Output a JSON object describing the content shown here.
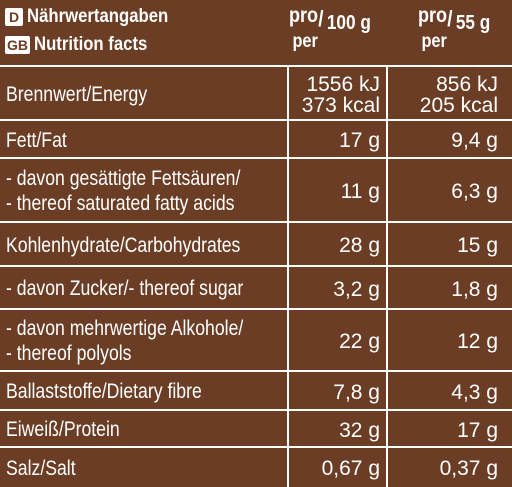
{
  "header": {
    "de_code": "D",
    "de_title": "Nährwertangaben",
    "gb_code": "GB",
    "gb_title": "Nutrition facts",
    "col1": {
      "pro": "pro",
      "per": "per",
      "slash": "/",
      "amount": "100 g"
    },
    "col2": {
      "pro": "pro",
      "per": "per",
      "slash": "/",
      "amount": "55 g"
    }
  },
  "rows": [
    {
      "label_lines": [
        "Brennwert/Energy"
      ],
      "v1": [
        "1556 kJ",
        "373 kcal"
      ],
      "v2": [
        "856 kJ",
        "205 kcal"
      ]
    },
    {
      "label_lines": [
        "Fett/Fat"
      ],
      "v1": [
        "17 g"
      ],
      "v2": [
        "9,4 g"
      ]
    },
    {
      "label_lines": [
        "- davon gesättigte Fettsäuren/",
        "- thereof saturated fatty acids"
      ],
      "v1": [
        "11 g"
      ],
      "v2": [
        "6,3 g"
      ]
    },
    {
      "label_lines": [
        "Kohlenhydrate/Carbohydrates"
      ],
      "v1": [
        "28 g"
      ],
      "v2": [
        "15 g"
      ]
    },
    {
      "label_lines": [
        "- davon Zucker/- thereof sugar"
      ],
      "v1": [
        "3,2 g"
      ],
      "v2": [
        "1,8 g"
      ]
    },
    {
      "label_lines": [
        "- davon mehrwertige Alkohole/",
        "- thereof polyols"
      ],
      "v1": [
        "22 g"
      ],
      "v2": [
        "12 g"
      ]
    },
    {
      "label_lines": [
        "Ballaststoffe/Dietary fibre"
      ],
      "v1": [
        "7,8 g"
      ],
      "v2": [
        "4,3 g"
      ]
    },
    {
      "label_lines": [
        "Eiweiß/Protein"
      ],
      "v1": [
        "32 g"
      ],
      "v2": [
        "17 g"
      ]
    },
    {
      "label_lines": [
        "Salz/Salt"
      ],
      "v1": [
        "0,67 g"
      ],
      "v2": [
        "0,37 g"
      ]
    }
  ],
  "colors": {
    "background": "#6b3d25",
    "text": "#ffffff"
  }
}
